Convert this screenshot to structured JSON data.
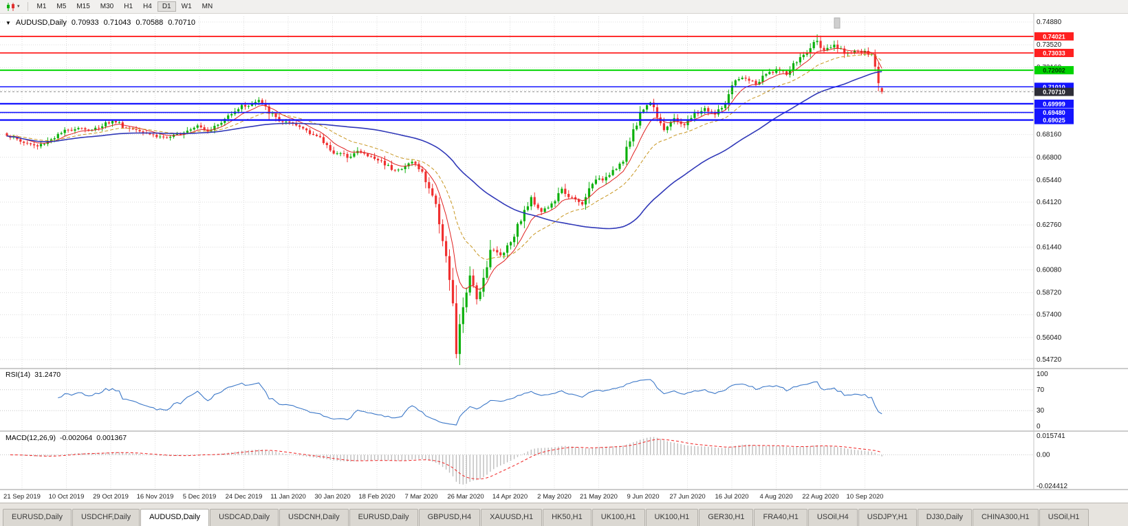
{
  "toolbar": {
    "timeframes": [
      "M1",
      "M5",
      "M15",
      "M30",
      "H1",
      "H4",
      "D1",
      "W1",
      "MN"
    ],
    "active_timeframe": "D1"
  },
  "chart": {
    "symbol_timeframe": "AUDUSD,Daily",
    "ohlc": {
      "open": "0.70933",
      "high": "0.71043",
      "low": "0.70588",
      "close": "0.70710"
    }
  },
  "price_axis": {
    "labels": [
      "0.74880",
      "0.73520",
      "0.72160",
      "0.70800",
      "0.69440",
      "0.68160",
      "0.66800",
      "0.65440",
      "0.64120",
      "0.62760",
      "0.61440",
      "0.60080",
      "0.58720",
      "0.57400",
      "0.56040",
      "0.54720"
    ]
  },
  "levels": [
    {
      "label": "0.74021",
      "price": 0.74021,
      "color": "#FF2020",
      "text_color": "#FFFFFF",
      "width": 1.8
    },
    {
      "label": "0.73033",
      "price": 0.73033,
      "color": "#FF2020",
      "text_color": "#FFFFFF",
      "width": 1.8
    },
    {
      "label": "0.72002",
      "price": 0.72002,
      "color": "#00D400",
      "text_color": "#003800",
      "width": 2
    },
    {
      "label": "0.71010",
      "price": 0.7101,
      "color": "#1414FF",
      "text_color": "#FFFFFF",
      "width": 1.6
    },
    {
      "label": "0.69999",
      "price": 0.69999,
      "color": "#1414FF",
      "text_color": "#FFFFFF",
      "width": 2.2
    },
    {
      "label": "0.69480",
      "price": 0.6948,
      "color": "#1414FF",
      "text_color": "#FFFFFF",
      "width": 1.6
    },
    {
      "label": "0.69025",
      "price": 0.69025,
      "color": "#1414FF",
      "text_color": "#FFFFFF",
      "width": 2.4
    }
  ],
  "current_price": {
    "value": "0.70710",
    "badge_color": "#2E2E38",
    "text_color": "#FFFFFF"
  },
  "date_axis": {
    "labels": [
      "21 Sep 2019",
      "10 Oct 2019",
      "29 Oct 2019",
      "16 Nov 2019",
      "5 Dec 2019",
      "24 Dec 2019",
      "11 Jan 2020",
      "30 Jan 2020",
      "18 Feb 2020",
      "7 Mar 2020",
      "26 Mar 2020",
      "14 Apr 2020",
      "2 May 2020",
      "21 May 2020",
      "9 Jun 2020",
      "27 Jun 2020",
      "16 Jul 2020",
      "4 Aug 2020",
      "22 Aug 2020",
      "10 Sep 2020"
    ]
  },
  "rsi": {
    "label": "RSI(14)",
    "value": "31.2470",
    "levels": [
      "100",
      "70",
      "30",
      "0"
    ]
  },
  "macd": {
    "label": "MACD(12,26,9)",
    "main_value": "-0.002064",
    "signal_value": "0.001367",
    "levels": [
      "0.015741",
      "0.00",
      "-0.024412"
    ]
  },
  "tabs": {
    "active_index": 2,
    "items": [
      "EURUSD,Daily",
      "USDCHF,Daily",
      "AUDUSD,Daily",
      "USDCAD,Daily",
      "USDCNH,Daily",
      "EURUSD,Daily",
      "GBPUSD,H4",
      "XAUUSD,H1",
      "HK50,H1",
      "UK100,H1",
      "UK100,H1",
      "GER30,H1",
      "FRA40,H1",
      "USOil,H4",
      "USDJPY,H1",
      "DJ30,Daily",
      "CHINA300,H1",
      "USOil,H1"
    ]
  },
  "colors": {
    "candle_up": "#0CB00C",
    "candle_down": "#F03030",
    "rsi_line": "#3C78C8",
    "macd_histogram": "#BDBDBD",
    "macd_signal": "#F02020",
    "grid": "#DCDCDC"
  },
  "chart_data": {
    "type": "candlestick",
    "symbol": "AUDUSD",
    "timeframe": "Daily",
    "x_range_dates": [
      "21 Sep 2019",
      "18 Sep 2020"
    ],
    "y_range": [
      0.5472,
      0.7488
    ],
    "candle_count": 258,
    "close_anchors": [
      [
        0,
        0.6815
      ],
      [
        4,
        0.6775
      ],
      [
        9,
        0.6745
      ],
      [
        13,
        0.679
      ],
      [
        17,
        0.6835
      ],
      [
        21,
        0.686
      ],
      [
        25,
        0.684
      ],
      [
        29,
        0.6885
      ],
      [
        32,
        0.6895
      ],
      [
        35,
        0.6855
      ],
      [
        39,
        0.6845
      ],
      [
        44,
        0.6805
      ],
      [
        48,
        0.6795
      ],
      [
        52,
        0.6835
      ],
      [
        56,
        0.6875
      ],
      [
        59,
        0.684
      ],
      [
        63,
        0.6885
      ],
      [
        66,
        0.695
      ],
      [
        69,
        0.6985
      ],
      [
        72,
        0.6995
      ],
      [
        74,
        0.702
      ],
      [
        77,
        0.695
      ],
      [
        80,
        0.69
      ],
      [
        84,
        0.6875
      ],
      [
        88,
        0.6845
      ],
      [
        92,
        0.679
      ],
      [
        96,
        0.671
      ],
      [
        100,
        0.6685
      ],
      [
        103,
        0.6715
      ],
      [
        107,
        0.668
      ],
      [
        110,
        0.6655
      ],
      [
        113,
        0.6615
      ],
      [
        116,
        0.6605
      ],
      [
        119,
        0.666
      ],
      [
        122,
        0.6585
      ],
      [
        125,
        0.6455
      ],
      [
        127,
        0.6305
      ],
      [
        129,
        0.6095
      ],
      [
        131,
        0.576
      ],
      [
        132,
        0.551
      ],
      [
        134,
        0.5795
      ],
      [
        136,
        0.5965
      ],
      [
        138,
        0.5835
      ],
      [
        140,
        0.596
      ],
      [
        142,
        0.6135
      ],
      [
        145,
        0.6095
      ],
      [
        148,
        0.618
      ],
      [
        151,
        0.6315
      ],
      [
        154,
        0.6435
      ],
      [
        157,
        0.636
      ],
      [
        160,
        0.6395
      ],
      [
        163,
        0.6485
      ],
      [
        166,
        0.6435
      ],
      [
        169,
        0.6395
      ],
      [
        172,
        0.6535
      ],
      [
        175,
        0.655
      ],
      [
        178,
        0.6605
      ],
      [
        181,
        0.6655
      ],
      [
        184,
        0.6845
      ],
      [
        187,
        0.6975
      ],
      [
        189,
        0.701
      ],
      [
        191,
        0.6935
      ],
      [
        193,
        0.685
      ],
      [
        196,
        0.6905
      ],
      [
        199,
        0.6875
      ],
      [
        202,
        0.6935
      ],
      [
        205,
        0.697
      ],
      [
        208,
        0.6935
      ],
      [
        211,
        0.7
      ],
      [
        214,
        0.7135
      ],
      [
        217,
        0.7155
      ],
      [
        220,
        0.7115
      ],
      [
        223,
        0.7175
      ],
      [
        226,
        0.7205
      ],
      [
        229,
        0.7175
      ],
      [
        232,
        0.7255
      ],
      [
        235,
        0.7305
      ],
      [
        238,
        0.7385
      ],
      [
        240,
        0.731
      ],
      [
        243,
        0.7345
      ],
      [
        246,
        0.7305
      ],
      [
        249,
        0.7315
      ],
      [
        252,
        0.7305
      ],
      [
        254,
        0.7285
      ],
      [
        256,
        0.7135
      ],
      [
        257,
        0.7071
      ]
    ],
    "last_candle": {
      "open": 0.70933,
      "high": 0.71043,
      "low": 0.70588,
      "close": 0.7071
    },
    "crash_low": {
      "index": 132,
      "low": 0.548
    },
    "peak_high": {
      "index": 238,
      "high": 0.7414
    },
    "moving_averages": [
      {
        "name": "fast-ma",
        "period": 8,
        "color": "#E02020",
        "style": "solid",
        "width": 1
      },
      {
        "name": "medium-ma",
        "period": 21,
        "color": "#C89620",
        "style": "dashed",
        "width": 1
      },
      {
        "name": "slow-ma",
        "period": 55,
        "color": "#3038B8",
        "style": "solid",
        "width": 1.6
      }
    ],
    "rsi": {
      "period": 14,
      "last_value": 31.247,
      "scale": [
        0,
        100
      ],
      "marked_levels": [
        70,
        30
      ]
    },
    "macd": {
      "fast": 12,
      "slow": 26,
      "signal": 9,
      "last_main": -0.002064,
      "last_signal": 0.001367,
      "axis_max": 0.015741,
      "axis_min": -0.024412
    }
  }
}
